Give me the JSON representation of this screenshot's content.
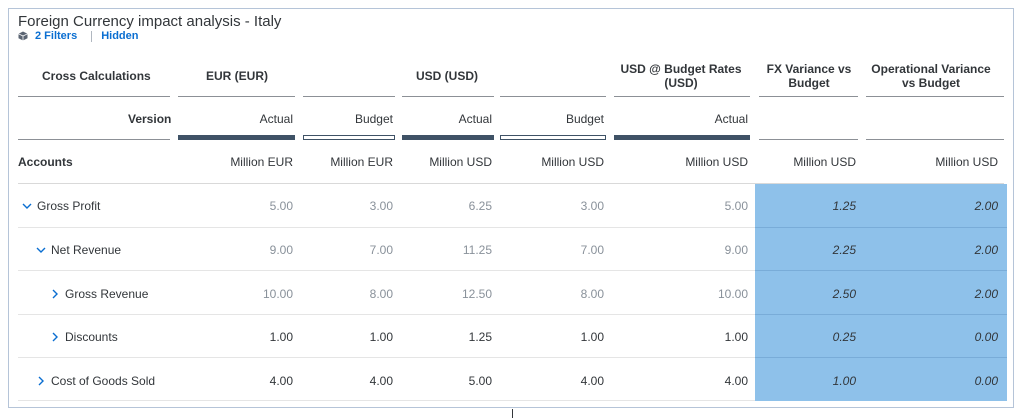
{
  "title": "Foreign Currency impact analysis - Italy",
  "toolbar": {
    "filters_label": "2 Filters",
    "hidden_label": "Hidden"
  },
  "header": {
    "cross_calc": "Cross Calculations",
    "eur": "EUR (EUR)",
    "usd": "USD (USD)",
    "usd_budget": "USD @ Budget Rates (USD)",
    "fx_variance": "FX Variance vs Budget",
    "op_variance": "Operational Variance vs Budget",
    "version_label": "Version",
    "accounts_label": "Accounts"
  },
  "versions": [
    "Actual",
    "Budget",
    "Actual",
    "Budget",
    "Actual"
  ],
  "units": [
    "Million EUR",
    "Million EUR",
    "Million USD",
    "Million USD",
    "Million USD",
    "Million USD",
    "Million USD"
  ],
  "rows": [
    {
      "label": "Gross Profit",
      "expand": "down",
      "values": [
        "5.00",
        "3.00",
        "6.25",
        "3.00",
        "5.00",
        "1.25",
        "2.00"
      ]
    },
    {
      "label": "Net Revenue",
      "expand": "down",
      "values": [
        "9.00",
        "7.00",
        "11.25",
        "7.00",
        "9.00",
        "2.25",
        "2.00"
      ]
    },
    {
      "label": "Gross Revenue",
      "expand": "right",
      "values": [
        "10.00",
        "8.00",
        "12.50",
        "8.00",
        "10.00",
        "2.50",
        "2.00"
      ]
    },
    {
      "label": "Discounts",
      "expand": "right",
      "values": [
        "1.00",
        "1.00",
        "1.25",
        "1.00",
        "1.00",
        "0.25",
        "0.00"
      ]
    },
    {
      "label": "Cost of Goods Sold",
      "expand": "right",
      "values": [
        "4.00",
        "4.00",
        "5.00",
        "4.00",
        "4.00",
        "1.00",
        "0.00"
      ]
    }
  ],
  "colors": {
    "highlight": "#8ec1ea",
    "link": "#0a6ed1",
    "bar": "#3f5266"
  }
}
